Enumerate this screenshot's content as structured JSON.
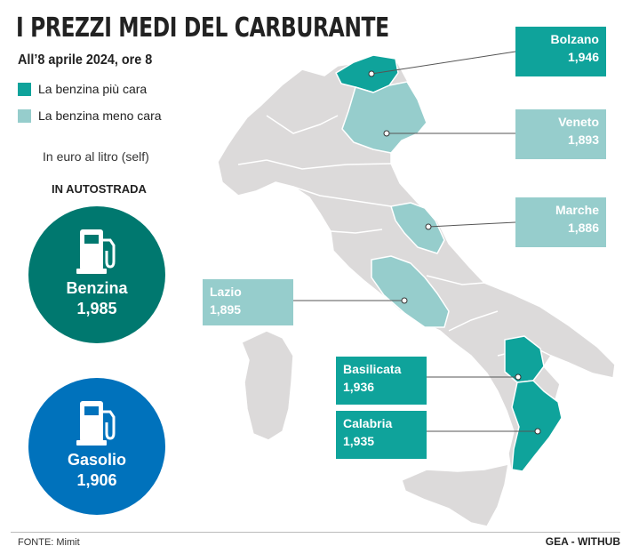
{
  "title": "I PREZZI MEDI DEL CARBURANTE",
  "subtitle": "All’8 aprile 2024, ore 8",
  "legend": [
    {
      "label": "La benzina più cara",
      "color": "#0fa39b"
    },
    {
      "label": "La benzina meno cara",
      "color": "#96cdcc"
    }
  ],
  "unit_label": "In euro al litro (self)",
  "autostrada": {
    "heading": "IN AUTOSTRADA",
    "benzina": {
      "name": "Benzina",
      "price": "1,985",
      "color": "#00786f",
      "icon": "fuel-pump-icon"
    },
    "gasolio": {
      "name": "Gasolio",
      "price": "1,906",
      "color": "#0072bc",
      "icon": "fuel-pump-icon"
    }
  },
  "regions": [
    {
      "name": "Bolzano",
      "price": "1,946",
      "category": "più cara"
    },
    {
      "name": "Veneto",
      "price": "1,893",
      "category": "meno cara"
    },
    {
      "name": "Marche",
      "price": "1,886",
      "category": "meno cara"
    },
    {
      "name": "Lazio",
      "price": "1,895",
      "category": "meno cara"
    },
    {
      "name": "Basilicata",
      "price": "1,936",
      "category": "più cara"
    },
    {
      "name": "Calabria",
      "price": "1,935",
      "category": "più cara"
    }
  ],
  "colors": {
    "land": "#dcdada",
    "border": "#ffffff",
    "dark_teal": "#0fa39b",
    "light_teal": "#96cdcc"
  },
  "footer": {
    "source": "FONTE: Mimit",
    "credit": "GEA - WITHUB"
  }
}
